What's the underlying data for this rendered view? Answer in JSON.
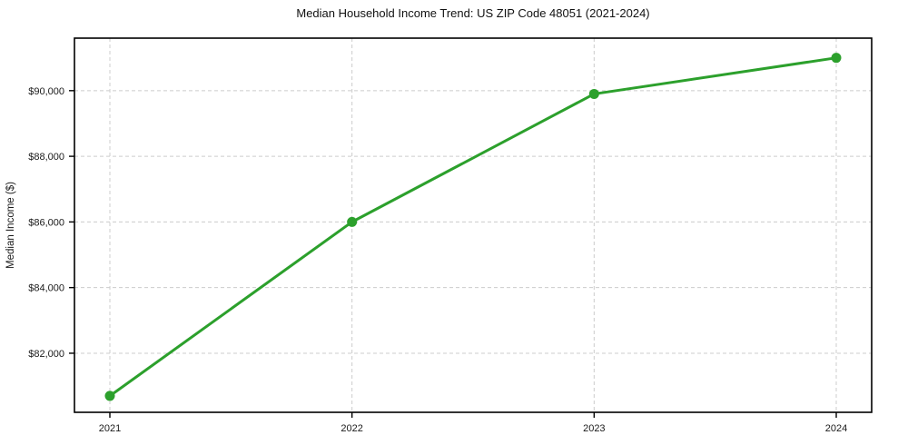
{
  "figure": {
    "title": "Median Household Income Trend: US ZIP Code 48051 (2021-2024)"
  },
  "chart_data": {
    "type": "line",
    "title": "Median Household Income Trend: US ZIP Code 48051 (2021-2024)",
    "xlabel": "",
    "ylabel": "Median Income ($)",
    "categories": [
      "2021",
      "2022",
      "2023",
      "2024"
    ],
    "series": [
      {
        "name": "Median Income ($)",
        "values": [
          80700,
          86000,
          89900,
          91000
        ]
      }
    ],
    "xtick_labels": [
      "2021",
      "2022",
      "2023",
      "2024"
    ],
    "yticks": [
      82000,
      84000,
      86000,
      88000,
      90000
    ],
    "ytick_labels": [
      "$82,000",
      "$84,000",
      "$86,000",
      "$88,000",
      "$90,000"
    ],
    "ylim": [
      80200,
      91600
    ],
    "grid": true,
    "grid_style": "dashed",
    "legend_position": "none",
    "line_color": "#2ca02c",
    "marker": "circle",
    "marker_radius": 5.5,
    "line_width": 3,
    "grid_color": "#cccccc",
    "axis_color": "#000000",
    "tick_label_color": "#1a1a1a",
    "title_color": "#111111",
    "background_color": "#ffffff"
  }
}
